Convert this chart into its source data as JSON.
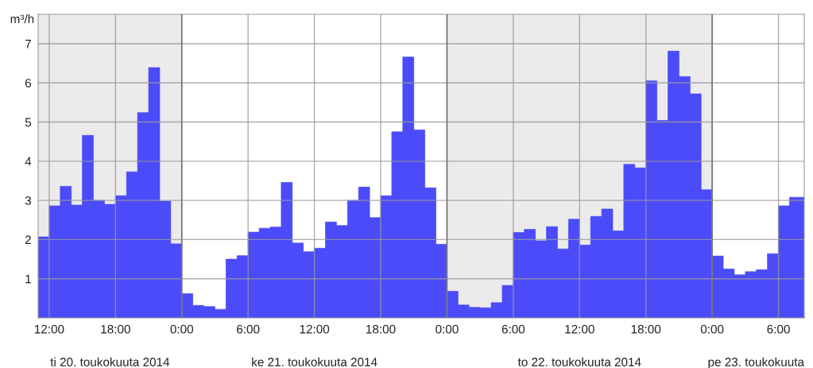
{
  "chart_data": {
    "type": "area",
    "ylabel": "m³/h",
    "x": [
      "2014-05-20T11:00",
      "2014-05-20T12:00",
      "2014-05-20T13:00",
      "2014-05-20T14:00",
      "2014-05-20T15:00",
      "2014-05-20T16:00",
      "2014-05-20T17:00",
      "2014-05-20T18:00",
      "2014-05-20T19:00",
      "2014-05-20T20:00",
      "2014-05-20T21:00",
      "2014-05-20T22:00",
      "2014-05-20T23:00",
      "2014-05-21T00:00",
      "2014-05-21T01:00",
      "2014-05-21T02:00",
      "2014-05-21T03:00",
      "2014-05-21T04:00",
      "2014-05-21T05:00",
      "2014-05-21T06:00",
      "2014-05-21T07:00",
      "2014-05-21T08:00",
      "2014-05-21T09:00",
      "2014-05-21T10:00",
      "2014-05-21T11:00",
      "2014-05-21T12:00",
      "2014-05-21T13:00",
      "2014-05-21T14:00",
      "2014-05-21T15:00",
      "2014-05-21T16:00",
      "2014-05-21T17:00",
      "2014-05-21T18:00",
      "2014-05-21T19:00",
      "2014-05-21T20:00",
      "2014-05-21T21:00",
      "2014-05-21T22:00",
      "2014-05-21T23:00",
      "2014-05-22T00:00",
      "2014-05-22T01:00",
      "2014-05-22T02:00",
      "2014-05-22T03:00",
      "2014-05-22T04:00",
      "2014-05-22T05:00",
      "2014-05-22T06:00",
      "2014-05-22T07:00",
      "2014-05-22T08:00",
      "2014-05-22T09:00",
      "2014-05-22T10:00",
      "2014-05-22T11:00",
      "2014-05-22T12:00",
      "2014-05-22T13:00",
      "2014-05-22T14:00",
      "2014-05-22T15:00",
      "2014-05-22T16:00",
      "2014-05-22T17:00",
      "2014-05-22T18:00",
      "2014-05-22T19:00",
      "2014-05-22T20:00",
      "2014-05-22T21:00",
      "2014-05-22T22:00",
      "2014-05-22T23:00",
      "2014-05-23T00:00",
      "2014-05-23T01:00",
      "2014-05-23T02:00",
      "2014-05-23T03:00",
      "2014-05-23T04:00",
      "2014-05-23T05:00",
      "2014-05-23T06:00",
      "2014-05-23T07:00",
      "2014-05-23T08:00",
      "2014-05-23T08:20"
    ],
    "values": [
      2.07,
      2.86,
      3.36,
      2.88,
      4.66,
      3.0,
      2.9,
      3.12,
      3.73,
      5.24,
      6.39,
      2.98,
      1.89,
      0.62,
      0.32,
      0.29,
      0.22,
      1.5,
      1.59,
      2.19,
      2.29,
      2.32,
      3.46,
      1.91,
      1.69,
      1.78,
      2.45,
      2.36,
      3.0,
      3.34,
      2.56,
      3.12,
      4.75,
      6.66,
      4.8,
      3.32,
      1.88,
      0.68,
      0.33,
      0.27,
      0.26,
      0.39,
      0.83,
      2.18,
      2.26,
      1.97,
      2.33,
      1.76,
      2.52,
      1.86,
      2.59,
      2.78,
      2.22,
      3.92,
      3.83,
      6.05,
      5.04,
      6.81,
      6.16,
      5.72,
      3.27,
      1.58,
      1.25,
      1.1,
      1.18,
      1.23,
      1.64,
      2.86,
      3.08,
      3.08,
      3.08
    ],
    "color": "#4b4bfa",
    "xlim": [
      "2014-05-20T11:00",
      "2014-05-23T08:20"
    ],
    "xticks": [
      {
        "value": "2014-05-20T12:00",
        "label": "12:00"
      },
      {
        "value": "2014-05-20T18:00",
        "label": "18:00"
      },
      {
        "value": "2014-05-21T00:00",
        "label": "0:00"
      },
      {
        "value": "2014-05-21T06:00",
        "label": "6:00"
      },
      {
        "value": "2014-05-21T12:00",
        "label": "12:00"
      },
      {
        "value": "2014-05-21T18:00",
        "label": "18:00"
      },
      {
        "value": "2014-05-22T00:00",
        "label": "0:00"
      },
      {
        "value": "2014-05-22T06:00",
        "label": "6:00"
      },
      {
        "value": "2014-05-22T12:00",
        "label": "12:00"
      },
      {
        "value": "2014-05-22T18:00",
        "label": "18:00"
      },
      {
        "value": "2014-05-23T00:00",
        "label": "0:00"
      },
      {
        "value": "2014-05-23T06:00",
        "label": "6:00"
      }
    ],
    "ylim": [
      0,
      7.75
    ],
    "yticks": [
      1,
      2,
      3,
      4,
      5,
      6,
      7
    ],
    "grid": true,
    "bands": [
      {
        "axis": "x",
        "from": "2014-05-20T11:00",
        "to": "2014-05-21T00:00",
        "color": "#ebebeb"
      },
      {
        "axis": "x",
        "from": "2014-05-22T00:00",
        "to": "2014-05-23T00:00",
        "color": "#ebebeb"
      }
    ],
    "annotations": [
      "ti 20. toukokuuta 2014",
      "ke 21. toukokuuta 2014",
      "to 22. toukokuuta 2014",
      "pe 23. toukokuuta"
    ]
  }
}
